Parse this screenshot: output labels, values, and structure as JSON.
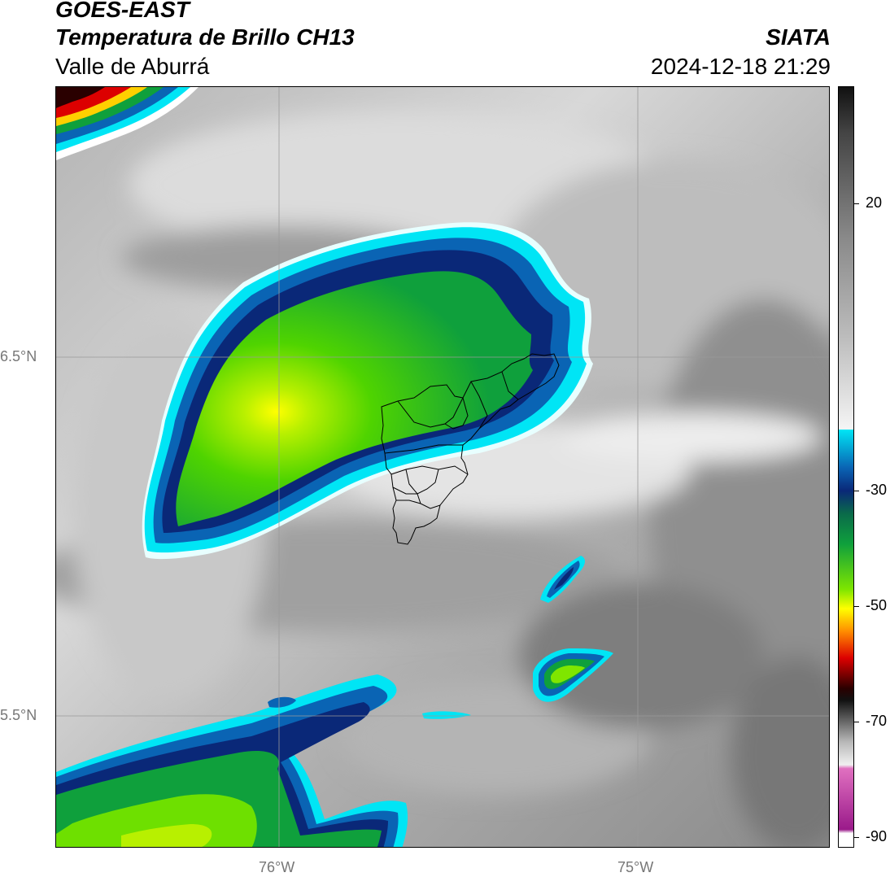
{
  "header": {
    "satellite": "GOES-EAST",
    "product": "Temperatura de Brillo CH13",
    "brand": "SIATA",
    "region": "Valle de Aburrá",
    "datetime": "2024-12-18 21:29"
  },
  "map": {
    "lat_labels": [
      "6.5°N",
      "5.5°N"
    ],
    "lon_labels": [
      "76°W",
      "75°W"
    ],
    "gridlines": true,
    "overlay": "Valle de Aburrá municipal boundaries"
  },
  "colorbar": {
    "ticks": [
      "20",
      "-30",
      "-50",
      "-70",
      "-90"
    ],
    "colors": {
      "dark": "#111111",
      "gray_mid": "#888888",
      "light_gray": "#f0f0f0",
      "cyan": "#00e5f5",
      "blue": "#0a64b4",
      "navy": "#0a2878",
      "green": "#0fa03c",
      "lime": "#7fe600",
      "yellow": "#ffff00",
      "orange": "#ff8c00",
      "red": "#dc0000",
      "dark_red": "#2a0000",
      "pink": "#e070c0",
      "purple": "#9a1a8a"
    }
  }
}
